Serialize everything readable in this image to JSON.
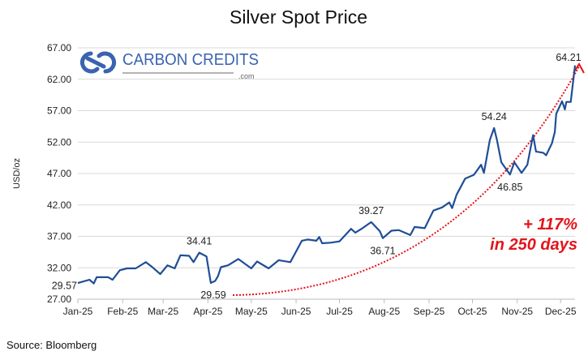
{
  "chart_data": {
    "type": "line",
    "title": "Silver Spot Price",
    "xlabel": "",
    "ylabel": "USD/oz",
    "ylim": [
      27,
      67
    ],
    "yticks": [
      "27.00",
      "32.00",
      "37.00",
      "42.00",
      "47.00",
      "52.00",
      "57.00",
      "62.00",
      "67.00"
    ],
    "ytick_values": [
      27,
      32,
      37,
      42,
      47,
      52,
      57,
      62,
      67
    ],
    "xticks": [
      "Jan-25",
      "Feb-25",
      "Mar-25",
      "Apr-25",
      "May-25",
      "Jun-25",
      "Jul-25",
      "Aug-25",
      "Sep-25",
      "Oct-25",
      "Nov-25",
      "Dec-25"
    ],
    "xtick_days": [
      0,
      31,
      59,
      90,
      120,
      151,
      181,
      212,
      243,
      273,
      304,
      334
    ],
    "xlim_days": [
      0,
      344
    ],
    "grid": true,
    "series": [
      {
        "name": "Silver Spot Price",
        "color": "#1f4e96",
        "x_days": [
          0,
          8,
          11,
          13,
          21,
          24,
          29,
          34,
          40,
          47,
          51,
          57,
          62,
          67,
          71,
          77,
          80,
          84,
          89,
          92,
          95,
          97,
          99,
          104,
          111,
          120,
          124,
          132,
          139,
          147,
          151,
          155,
          159,
          165,
          167,
          169,
          175,
          181,
          189,
          192,
          197,
          203,
          209,
          211,
          217,
          222,
          230,
          233,
          240,
          246,
          252,
          257,
          259,
          262,
          268,
          274,
          279,
          281,
          285,
          288,
          290,
          293,
          299,
          302,
          307,
          311,
          315,
          317,
          322,
          324,
          328,
          330,
          331,
          335,
          337,
          338,
          341,
          344
        ],
        "values": [
          29.57,
          30.1,
          29.5,
          30.5,
          30.5,
          30.1,
          31.6,
          31.9,
          31.9,
          32.9,
          32.2,
          31.0,
          32.4,
          31.9,
          34.0,
          33.9,
          32.9,
          34.41,
          33.8,
          29.59,
          29.9,
          30.7,
          32.1,
          32.4,
          33.4,
          31.9,
          33.0,
          31.9,
          33.2,
          32.9,
          34.6,
          36.3,
          36.5,
          36.3,
          36.9,
          35.9,
          36.0,
          36.2,
          38.2,
          37.6,
          38.3,
          39.27,
          37.8,
          36.71,
          37.9,
          38.0,
          37.2,
          38.5,
          38.3,
          41.1,
          41.6,
          42.4,
          41.5,
          43.6,
          46.2,
          46.8,
          48.4,
          47.1,
          52.3,
          54.24,
          52.3,
          48.8,
          46.85,
          48.8,
          47.1,
          48.4,
          53.1,
          50.5,
          50.3,
          49.9,
          51.8,
          53.6,
          56.5,
          58.5,
          57.2,
          58.4,
          58.4,
          64.21
        ]
      }
    ],
    "data_labels": [
      {
        "text": "29.57",
        "day": 0,
        "value": 29.57,
        "pos": "left"
      },
      {
        "text": "34.41",
        "day": 84,
        "value": 34.41,
        "pos": "above"
      },
      {
        "text": "29.59",
        "day": 92,
        "value": 29.59,
        "pos": "below"
      },
      {
        "text": "39.27",
        "day": 203,
        "value": 39.27,
        "pos": "above"
      },
      {
        "text": "36.71",
        "day": 211,
        "value": 36.71,
        "pos": "below"
      },
      {
        "text": "54.24",
        "day": 288,
        "value": 54.24,
        "pos": "above"
      },
      {
        "text": "46.85",
        "day": 299,
        "value": 46.85,
        "pos": "below"
      },
      {
        "text": "64.21",
        "day": 344,
        "value": 64.21,
        "pos": "above"
      }
    ],
    "annotation": {
      "line1": "+ 117%",
      "line2": "in 250 days",
      "color": "#e3141b"
    },
    "source": "Source: Bloomberg"
  },
  "logo": {
    "name": "CARBON CREDITS",
    "suffix": ".com",
    "color": "#3a63b0"
  }
}
